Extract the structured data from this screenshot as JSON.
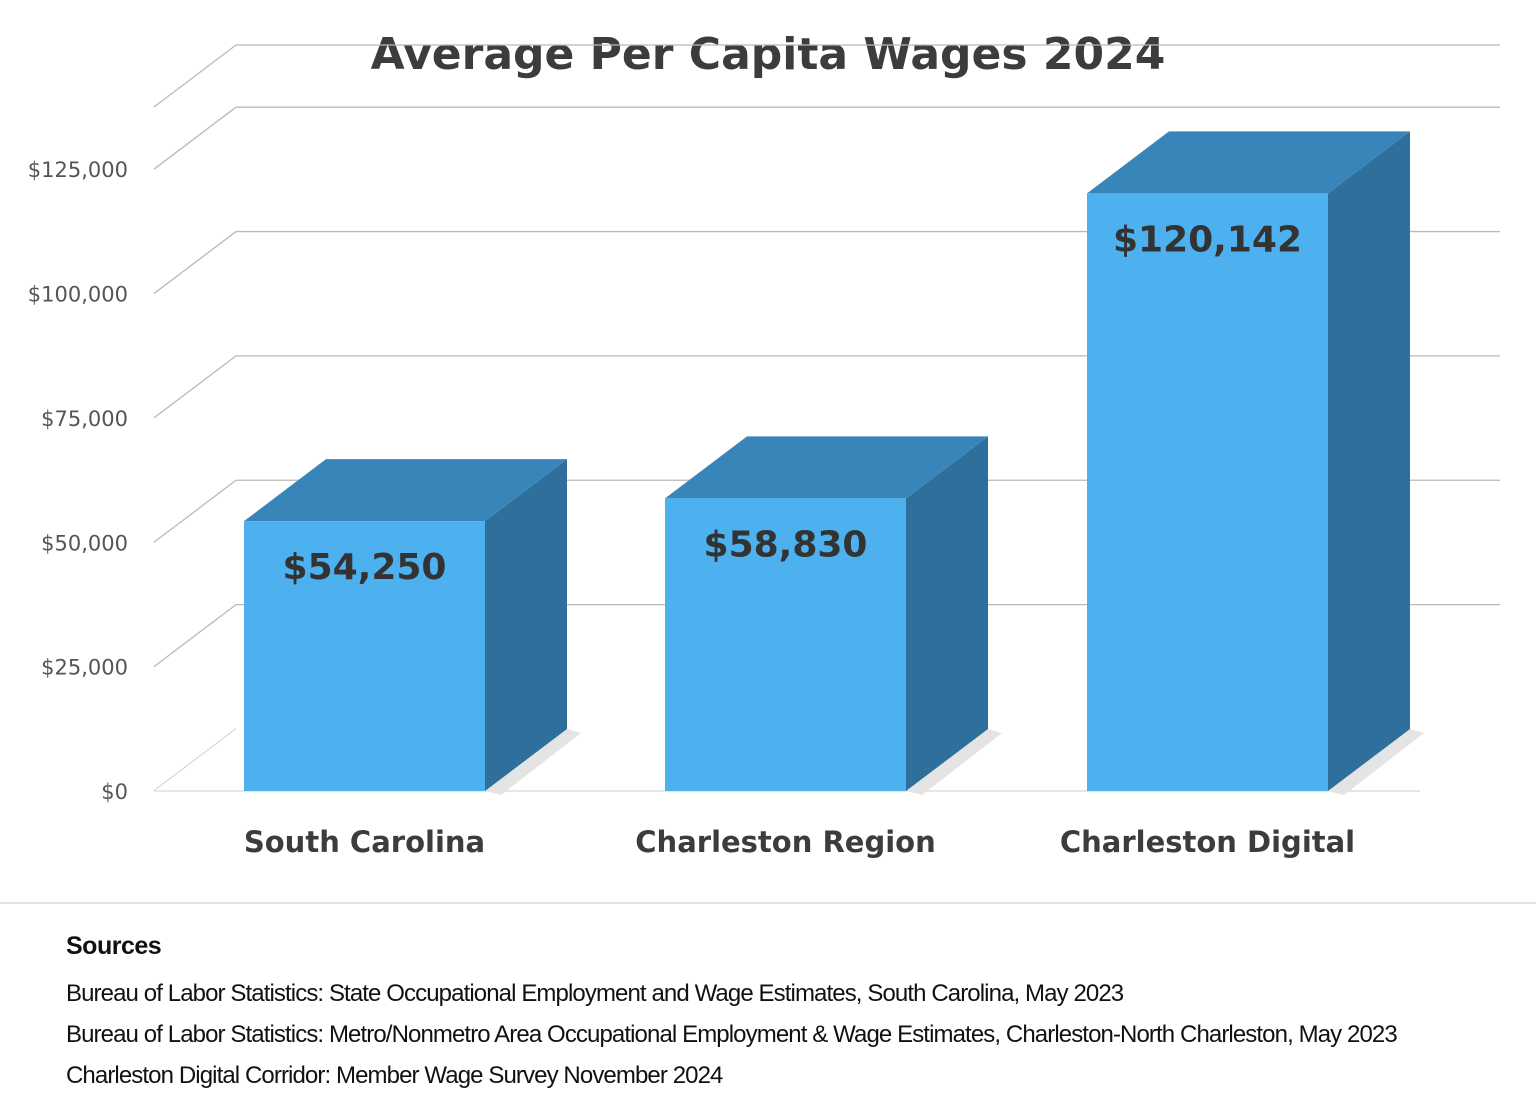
{
  "chart_data": {
    "type": "bar",
    "title": "Average Per Capita Wages 2024",
    "categories": [
      "South Carolina",
      "Charleston Region",
      "Charleston Digital"
    ],
    "values": [
      54250,
      58830,
      120142
    ],
    "value_labels": [
      "$54,250",
      "$58,830",
      "$120,142"
    ],
    "ylim": [
      0,
      137500
    ],
    "yticks": [
      0,
      25000,
      50000,
      75000,
      100000,
      125000
    ],
    "ytick_labels": [
      "$0",
      "$25,000",
      "$50,000",
      "$75,000",
      "$100,000",
      "$125,000"
    ],
    "xlabel": "",
    "ylabel": "",
    "grid": true,
    "legend": "none",
    "style": "3d-column",
    "colors": {
      "front": "#4db0ef",
      "top": "#3886b9",
      "side": "#2e6f9b",
      "grid": "#b9b9b9"
    }
  },
  "sources": {
    "heading": "Sources",
    "lines": [
      "Bureau of Labor Statistics: State Occupational Employment and Wage Estimates, South Carolina, May 2023",
      "Bureau of Labor Statistics: Metro/Nonmetro Area Occupational Employment & Wage Estimates, Charleston-North Charleston, May 2023",
      "Charleston Digital Corridor: Member Wage Survey November 2024"
    ]
  }
}
